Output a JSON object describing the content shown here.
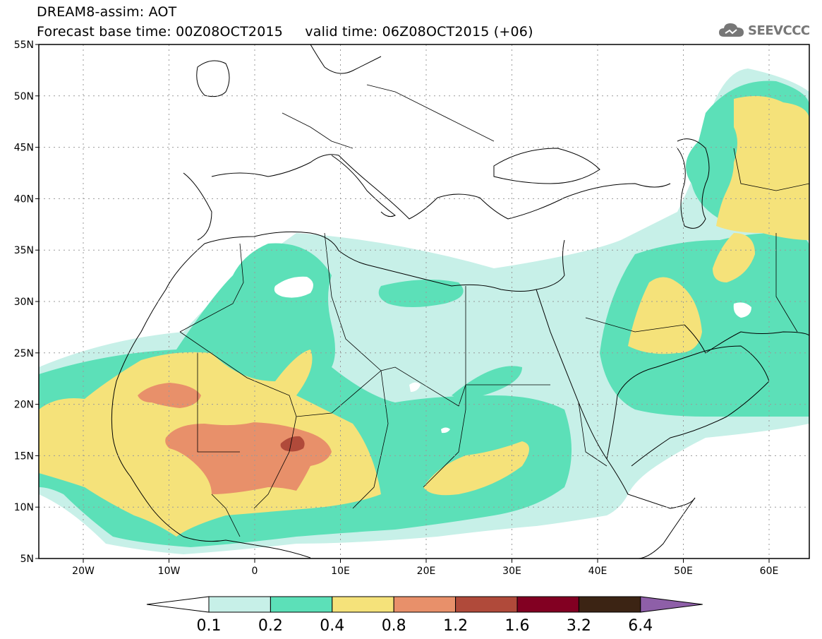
{
  "title_line1": "DREAM8-assim: AOT",
  "title_line2": "Forecast base time: 00Z08OCT2015     valid time: 06Z08OCT2015 (+06)",
  "logo": {
    "icon": "cloud-icon",
    "text": "SEEVCCC"
  },
  "map": {
    "lat_labels": [
      "55N",
      "50N",
      "45N",
      "40N",
      "35N",
      "30N",
      "25N",
      "20N",
      "15N",
      "10N",
      "5N"
    ],
    "lon_labels": [
      "20W",
      "10W",
      "0",
      "10E",
      "20E",
      "30E",
      "40E",
      "50E",
      "60E"
    ]
  },
  "colorbar": {
    "ticks": [
      "0.1",
      "0.2",
      "0.4",
      "0.8",
      "1.2",
      "1.6",
      "3.2",
      "6.4"
    ],
    "colors": [
      "#ffffff",
      "#c7f0e8",
      "#5ce0b8",
      "#f5e27a",
      "#e8906a",
      "#b04a3a",
      "#820022",
      "#3c2414",
      "#8e5fa8"
    ]
  }
}
